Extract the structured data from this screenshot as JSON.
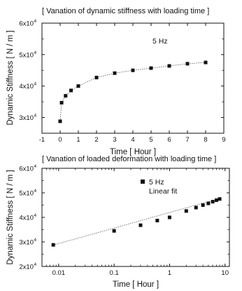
{
  "chart_data": [
    {
      "type": "scatter",
      "title": "[ Vanation of dynamic stiffness with loading time ]",
      "xlabel": "Time [ Hour ]",
      "ylabel": "Dynamic Stiffness [ N / m ]",
      "xscale": "linear",
      "yscale": "linear",
      "xlim": [
        -1,
        9
      ],
      "ylim": [
        25000,
        60000
      ],
      "x_ticks": [
        -1,
        0,
        1,
        2,
        3,
        4,
        5,
        6,
        7,
        8,
        9
      ],
      "x_tick_labels": [
        "-1",
        "0",
        "1",
        "2",
        "3",
        "4",
        "5",
        "6",
        "7",
        "8",
        "9"
      ],
      "y_ticks": [
        30000,
        40000,
        50000,
        60000
      ],
      "y_tick_labels": [
        {
          "mantissa": "3x10",
          "exp": "4"
        },
        {
          "mantissa": "4x10",
          "exp": "4"
        },
        {
          "mantissa": "5x10",
          "exp": "4"
        },
        {
          "mantissa": "6x10",
          "exp": "4"
        }
      ],
      "grid": false,
      "annotation": "5 Hz",
      "series": [
        {
          "x": [
            0,
            0.08,
            0.3,
            0.6,
            1,
            2,
            3,
            4,
            5,
            6,
            7,
            8
          ],
          "y": [
            28800,
            34700,
            36900,
            38600,
            40000,
            42700,
            44100,
            45000,
            45700,
            46400,
            47100,
            47500
          ]
        }
      ],
      "trend_line": true
    },
    {
      "type": "scatter",
      "title": "[ Vanation of loaded deformation with loading time ]",
      "xlabel": "Time [ Hour ]",
      "ylabel": "Dynamic Stiffness [ N / m ]",
      "xscale": "log",
      "yscale": "linear",
      "xlim": [
        0.005,
        12
      ],
      "ylim": [
        20000,
        60000
      ],
      "x_ticks": [
        0.01,
        0.1,
        1,
        10
      ],
      "x_tick_labels": [
        "0.01",
        "0.1",
        "1",
        "10"
      ],
      "y_ticks": [
        20000,
        30000,
        40000,
        50000,
        60000
      ],
      "y_tick_labels": [
        {
          "mantissa": "2x10",
          "exp": "4"
        },
        {
          "mantissa": "3x10",
          "exp": "4"
        },
        {
          "mantissa": "4x10",
          "exp": "4"
        },
        {
          "mantissa": "5x10",
          "exp": "4"
        },
        {
          "mantissa": "6x10",
          "exp": "4"
        }
      ],
      "grid": false,
      "legend": {
        "placement": "top-center",
        "entries": [
          "5 Hz",
          "Linear fit"
        ]
      },
      "series": [
        {
          "name": "5 Hz",
          "x": [
            0.008,
            0.1,
            0.3,
            0.6,
            1,
            2,
            3,
            4,
            5,
            6,
            7,
            8
          ],
          "y": [
            28800,
            34500,
            36800,
            38700,
            40000,
            42600,
            44000,
            45000,
            45700,
            46400,
            47000,
            47500
          ]
        }
      ],
      "fit_line": {
        "x": [
          0.008,
          8
        ],
        "y": [
          28700,
          47700
        ]
      }
    }
  ]
}
